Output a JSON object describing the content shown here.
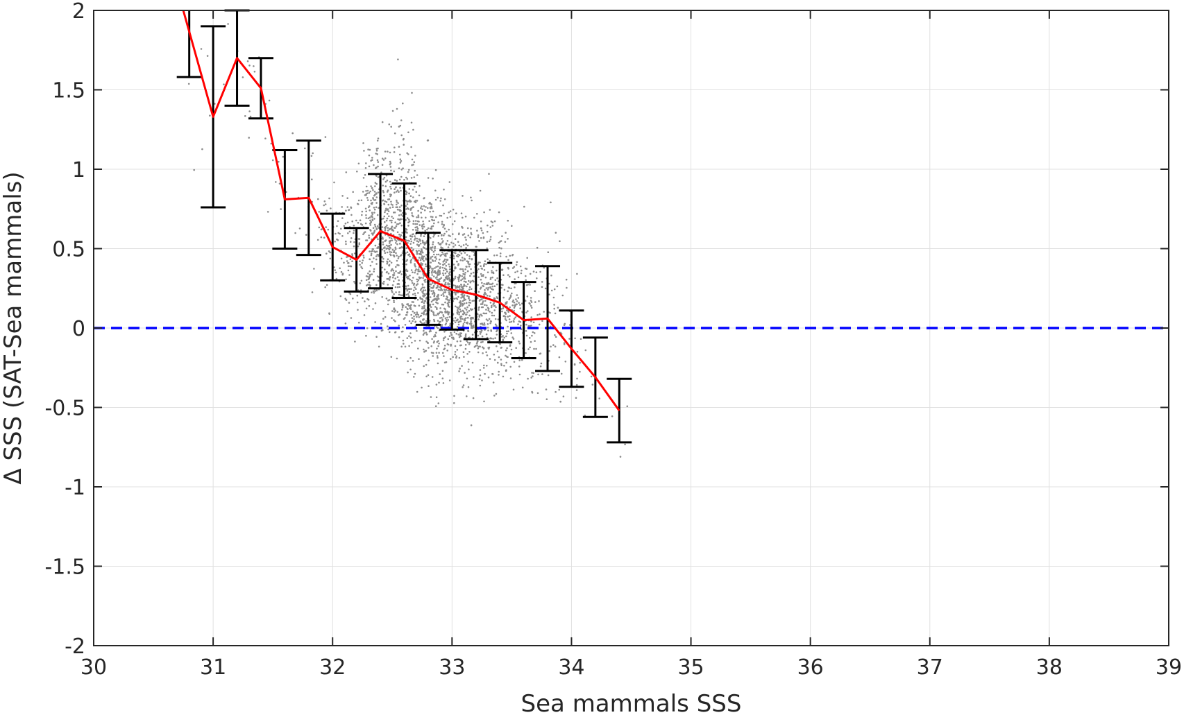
{
  "chart_data": {
    "type": "scatter",
    "xlabel": "Sea mammals SSS",
    "ylabel": "Δ SSS (SAT-Sea mammals)",
    "xlim": [
      30,
      39
    ],
    "ylim": [
      -2,
      2
    ],
    "xticks": [
      "30",
      "31",
      "32",
      "33",
      "34",
      "35",
      "36",
      "37",
      "38",
      "39"
    ],
    "yticks": [
      "-2",
      "-1.5",
      "-1",
      "-0.5",
      "0",
      "0.5",
      "1",
      "1.5",
      "2"
    ],
    "grid": true,
    "colors": {
      "scatter": "#8c8c8c",
      "mean_line": "#ff0000",
      "error_bars": "#000000",
      "zero_line": "#0000ff",
      "grid": "#e0e0e0",
      "axis": "#262626"
    },
    "series": [
      {
        "type": "errorbar",
        "x": [
          30.8,
          31.0,
          31.2,
          31.4,
          31.6,
          31.8,
          32.0,
          32.2,
          32.4,
          32.6,
          32.8,
          33.0,
          33.2,
          33.4,
          33.6,
          33.8,
          34.0,
          34.2,
          34.4
        ],
        "y": [
          2.08,
          1.33,
          1.7,
          1.51,
          0.81,
          0.82,
          0.51,
          0.43,
          0.61,
          0.55,
          0.31,
          0.24,
          0.21,
          0.16,
          0.05,
          0.06,
          -0.13,
          -0.31,
          -0.52
        ],
        "err": [
          0.5,
          0.57,
          0.3,
          0.19,
          0.31,
          0.36,
          0.21,
          0.2,
          0.36,
          0.36,
          0.29,
          0.25,
          0.28,
          0.25,
          0.24,
          0.33,
          0.24,
          0.25,
          0.2
        ],
        "mean_line_start": [
          30.75,
          2.0
        ]
      },
      {
        "type": "hline",
        "y": 0,
        "style": "dashed"
      },
      {
        "type": "scatter",
        "note": "dense gray point cloud",
        "bins": [
          {
            "x": 30.8,
            "n": 6,
            "mean": 1.85,
            "sd": 0.25
          },
          {
            "x": 31.0,
            "n": 6,
            "mean": 1.3,
            "sd": 0.3
          },
          {
            "x": 31.2,
            "n": 8,
            "mean": 1.6,
            "sd": 0.3
          },
          {
            "x": 31.4,
            "n": 8,
            "mean": 1.5,
            "sd": 0.2
          },
          {
            "x": 31.6,
            "n": 12,
            "mean": 0.8,
            "sd": 0.3
          },
          {
            "x": 31.8,
            "n": 15,
            "mean": 0.8,
            "sd": 0.35
          },
          {
            "x": 32.0,
            "n": 50,
            "mean": 0.5,
            "sd": 0.2
          },
          {
            "x": 32.2,
            "n": 120,
            "mean": 0.45,
            "sd": 0.2
          },
          {
            "x": 32.4,
            "n": 350,
            "mean": 0.6,
            "sd": 0.3
          },
          {
            "x": 32.6,
            "n": 450,
            "mean": 0.5,
            "sd": 0.33
          },
          {
            "x": 32.8,
            "n": 500,
            "mean": 0.3,
            "sd": 0.27
          },
          {
            "x": 33.0,
            "n": 450,
            "mean": 0.24,
            "sd": 0.24
          },
          {
            "x": 33.2,
            "n": 350,
            "mean": 0.21,
            "sd": 0.25
          },
          {
            "x": 33.4,
            "n": 220,
            "mean": 0.16,
            "sd": 0.23
          },
          {
            "x": 33.6,
            "n": 120,
            "mean": 0.06,
            "sd": 0.23
          },
          {
            "x": 33.8,
            "n": 60,
            "mean": 0.05,
            "sd": 0.3
          },
          {
            "x": 34.0,
            "n": 25,
            "mean": -0.12,
            "sd": 0.25
          },
          {
            "x": 34.2,
            "n": 6,
            "mean": -0.35,
            "sd": 0.3
          },
          {
            "x": 34.4,
            "n": 3,
            "mean": -0.5,
            "sd": 0.2
          }
        ]
      }
    ]
  }
}
